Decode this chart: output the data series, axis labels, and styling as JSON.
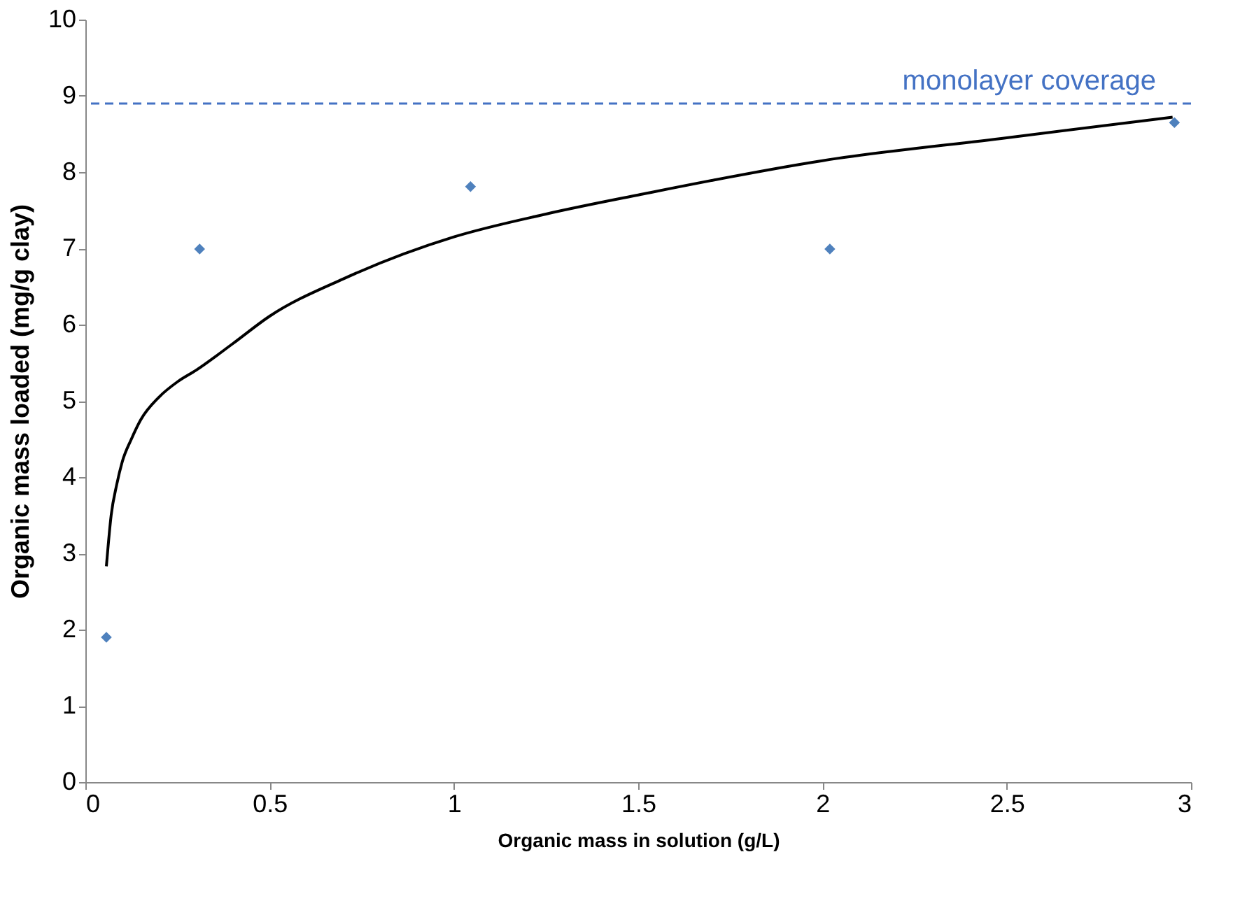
{
  "chart_data": {
    "type": "scatter",
    "xlabel": "Organic mass in solution (g/L)",
    "ylabel": "Organic mass loaded (mg/g clay)",
    "xlim": [
      0,
      3
    ],
    "ylim": [
      0,
      10
    ],
    "xticks": [
      0,
      0.5,
      1,
      1.5,
      2,
      2.5,
      3
    ],
    "yticks": [
      0,
      1,
      2,
      3,
      4,
      5,
      6,
      7,
      8,
      9,
      10
    ],
    "grid": false,
    "legend": false,
    "series": [
      {
        "color": "#4f81bd",
        "marker": "diamond",
        "x": [
          0.057,
          0.31,
          1.045,
          2.02,
          2.955
        ],
        "values": [
          1.9,
          6.99,
          7.81,
          6.99,
          8.65
        ]
      },
      {
        "type": "line",
        "color": "#000000",
        "marker": "none",
        "line_style": "solid",
        "x": [
          0.057,
          0.07,
          0.085,
          0.1,
          0.125,
          0.15,
          0.2,
          0.25,
          0.3,
          0.4,
          0.5,
          0.7,
          1.0,
          1.25,
          1.5,
          2.0,
          2.5,
          2.95
        ],
        "values": [
          2.83,
          3.5,
          3.9,
          4.2,
          4.5,
          4.75,
          5.05,
          5.25,
          5.4,
          5.75,
          6.11,
          6.6,
          7.15,
          7.45,
          7.7,
          8.15,
          8.45,
          8.72
        ]
      }
    ],
    "ref_lines": [
      {
        "axis": "y",
        "value": 8.9,
        "label": "monolayer coverage",
        "color": "#4472c4",
        "line_style": "dashed"
      }
    ]
  }
}
